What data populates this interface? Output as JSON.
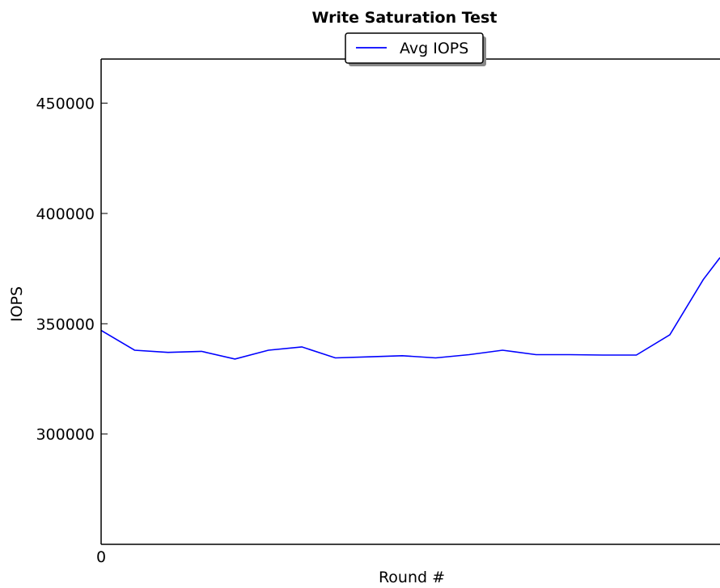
{
  "chart_data": {
    "type": "line",
    "title": "Write Saturation Test",
    "xlabel": "Round #",
    "ylabel": "IOPS",
    "xlim": [
      0,
      18.5
    ],
    "ylim": [
      250000,
      470000
    ],
    "x_ticks": [
      0
    ],
    "y_ticks": [
      300000,
      350000,
      400000,
      450000
    ],
    "grid": false,
    "legend": {
      "position": "top-center",
      "entries": [
        "Avg IOPS"
      ]
    },
    "series": [
      {
        "name": "Avg IOPS",
        "color": "#0000ff",
        "x": [
          0,
          1,
          2,
          3,
          4,
          5,
          6,
          7,
          8,
          9,
          10,
          11,
          12,
          13,
          14,
          15,
          16,
          17,
          18,
          18.5
        ],
        "y": [
          347000,
          338000,
          337000,
          337500,
          334000,
          338000,
          339500,
          334500,
          335000,
          335500,
          334500,
          336000,
          338000,
          336000,
          336000,
          335800,
          335800,
          345000,
          370000,
          380000
        ]
      }
    ]
  }
}
